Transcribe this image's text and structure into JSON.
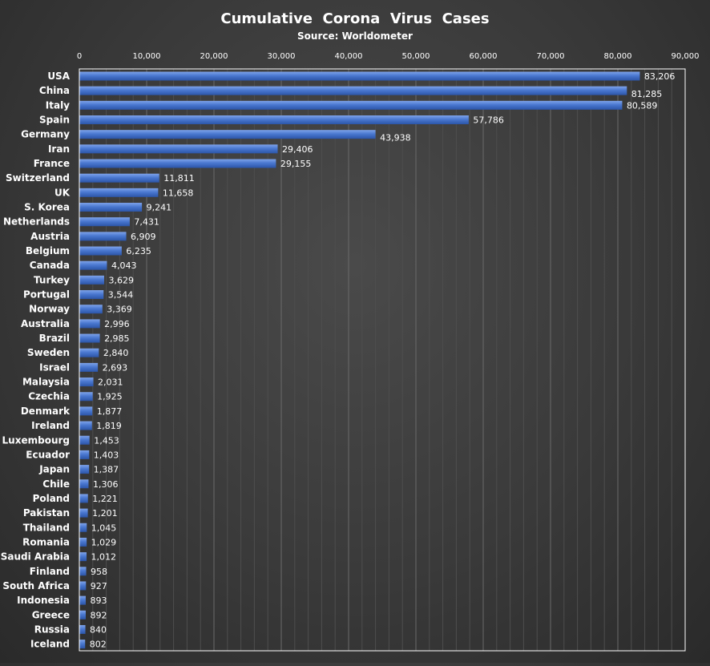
{
  "chart_data": {
    "type": "bar",
    "orientation": "horizontal",
    "title": "Cumulative  Corona  Virus  Cases",
    "subtitle": "Source: Worldometer",
    "xlim": [
      0,
      90000
    ],
    "x_ticks": [
      0,
      10000,
      20000,
      30000,
      40000,
      50000,
      60000,
      70000,
      80000,
      90000
    ],
    "x_tick_labels": [
      "0",
      "10,000",
      "20,000",
      "30,000",
      "40,000",
      "50,000",
      "60,000",
      "70,000",
      "80,000",
      "90,000"
    ],
    "x_axis_position": "top",
    "grid": true,
    "legend": "none",
    "bar_color": "#4472c4",
    "categories": [
      "USA",
      "China",
      "Italy",
      "Spain",
      "Germany",
      "Iran",
      "France",
      "Switzerland",
      "UK",
      "S. Korea",
      "Netherlands",
      "Austria",
      "Belgium",
      "Canada",
      "Turkey",
      "Portugal",
      "Norway",
      "Australia",
      "Brazil",
      "Sweden",
      "Israel",
      "Malaysia",
      "Czechia",
      "Denmark",
      "Ireland",
      "Luxembourg",
      "Ecuador",
      "Japan",
      "Chile",
      "Poland",
      "Pakistan",
      "Thailand",
      "Romania",
      "Saudi Arabia",
      "Finland",
      "South Africa",
      "Indonesia",
      "Greece",
      "Russia",
      "Iceland"
    ],
    "values": [
      83206,
      81285,
      80589,
      57786,
      43938,
      29406,
      29155,
      11811,
      11658,
      9241,
      7431,
      6909,
      6235,
      4043,
      3629,
      3544,
      3369,
      2996,
      2985,
      2840,
      2693,
      2031,
      1925,
      1877,
      1819,
      1453,
      1403,
      1387,
      1306,
      1221,
      1201,
      1045,
      1029,
      1012,
      958,
      927,
      893,
      892,
      840,
      802
    ],
    "value_labels": [
      "83,206",
      "81,285",
      "80,589",
      "57,786",
      "43,938",
      "29,406",
      "29,155",
      "11,811",
      "11,658",
      "9,241",
      "7,431",
      "6,909",
      "6,235",
      "4,043",
      "3,629",
      "3,544",
      "3,369",
      "2,996",
      "2,985",
      "2,840",
      "2,693",
      "2,031",
      "1,925",
      "1,877",
      "1,819",
      "1,453",
      "1,403",
      "1,387",
      "1,306",
      "1,221",
      "1,201",
      "1,045",
      "1,029",
      "1,012",
      "958",
      "927",
      "893",
      "892",
      "840",
      "802"
    ]
  }
}
